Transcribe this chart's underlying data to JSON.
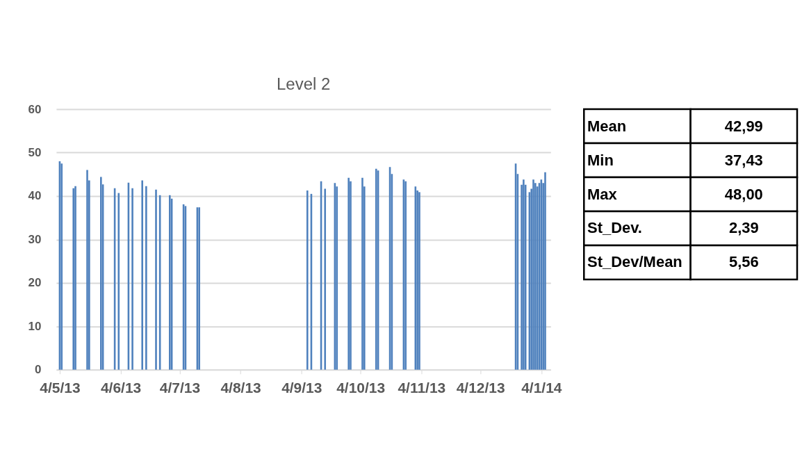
{
  "chart_data": [
    {
      "type": "bar",
      "title": "Level 2",
      "color": "#4f81bd",
      "x": [
        "2013-05-04",
        "2013-05-05",
        "2013-05-11",
        "2013-05-12",
        "2013-05-18",
        "2013-05-19",
        "2013-05-25",
        "2013-05-26",
        "2013-06-01",
        "2013-06-03",
        "2013-06-08",
        "2013-06-10",
        "2013-06-15",
        "2013-06-17",
        "2013-06-22",
        "2013-06-24",
        "2013-06-29",
        "2013-06-30",
        "2013-07-06",
        "2013-07-07",
        "2013-07-13",
        "2013-07-14",
        "2013-09-07",
        "2013-09-09",
        "2013-09-14",
        "2013-09-16",
        "2013-09-21",
        "2013-09-22",
        "2013-09-28",
        "2013-09-29",
        "2013-10-05",
        "2013-10-06",
        "2013-10-12",
        "2013-10-13",
        "2013-10-19",
        "2013-10-20",
        "2013-10-26",
        "2013-10-27",
        "2013-11-01",
        "2013-11-02",
        "2013-11-03",
        "2013-12-22",
        "2013-12-23",
        "2013-12-25",
        "2013-12-26",
        "2013-12-27",
        "2013-12-29",
        "2013-12-30",
        "2013-12-31",
        "2014-01-01",
        "2014-01-02",
        "2014-01-03",
        "2014-01-04",
        "2014-01-05",
        "2014-01-06"
      ],
      "values": [
        48.0,
        47.5,
        41.8,
        42.3,
        46.0,
        43.6,
        44.4,
        42.7,
        41.8,
        40.7,
        43.1,
        41.8,
        43.6,
        42.3,
        41.5,
        40.2,
        40.2,
        39.4,
        38.1,
        37.7,
        37.4,
        37.4,
        41.3,
        40.5,
        43.4,
        41.7,
        43.0,
        42.2,
        44.2,
        43.4,
        44.2,
        42.2,
        46.3,
        45.9,
        46.7,
        45.1,
        43.8,
        43.4,
        42.2,
        41.3,
        40.9,
        47.5,
        45.1,
        42.6,
        43.8,
        42.6,
        40.9,
        41.7,
        43.8,
        43.0,
        42.2,
        43.0,
        43.8,
        43.0,
        45.5
      ],
      "xlim": [
        "2013-05-04",
        "2014-01-07"
      ],
      "xticks": [
        {
          "value": "2013-05-04",
          "label": "4/5/13"
        },
        {
          "value": "2013-06-04",
          "label": "4/6/13"
        },
        {
          "value": "2013-07-04",
          "label": "4/7/13"
        },
        {
          "value": "2013-08-04",
          "label": "4/8/13"
        },
        {
          "value": "2013-09-04",
          "label": "4/9/13"
        },
        {
          "value": "2013-10-04",
          "label": "4/10/13"
        },
        {
          "value": "2013-11-04",
          "label": "4/11/13"
        },
        {
          "value": "2013-12-04",
          "label": "4/12/13"
        },
        {
          "value": "2014-01-04",
          "label": "4/1/14"
        }
      ],
      "ylim": [
        0,
        60
      ],
      "yticks": [
        0,
        10,
        20,
        30,
        40,
        50,
        60
      ],
      "grid": "y"
    },
    {
      "type": "other",
      "annotations": [
        "Mean",
        "42,99",
        "Min",
        "37,43",
        "Max",
        "48,00",
        "St_Dev.",
        "2,39",
        "St_Dev/Mean",
        "5,56"
      ]
    }
  ]
}
